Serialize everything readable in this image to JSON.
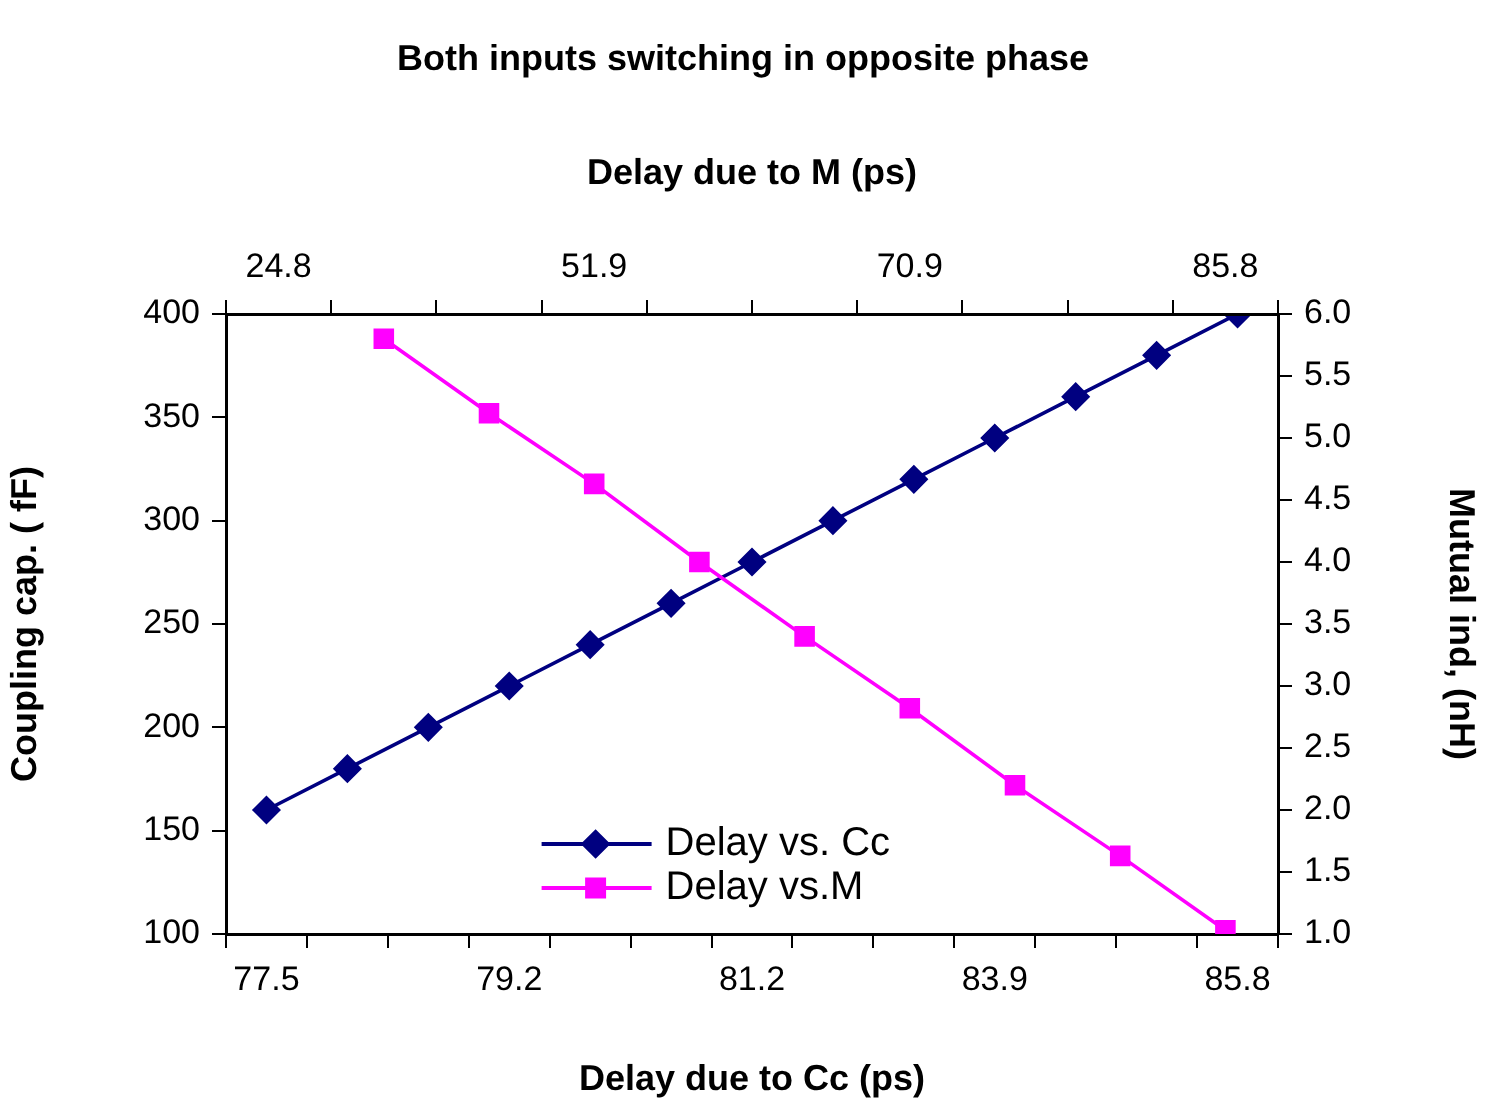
{
  "chart_data": [
    {
      "type": "line",
      "title": "Both inputs switching in opposite phase",
      "xlabel": "Delay due to Cc (ps)",
      "ylabel": "Coupling cap. ( fF)",
      "categories": [
        "77.5",
        null,
        null,
        "79.2",
        null,
        null,
        "81.2",
        null,
        null,
        "83.9",
        null,
        null,
        "85.8"
      ],
      "series": [
        {
          "name": "Delay vs. Cc",
          "color": "#000080",
          "values": [
            160,
            180,
            200,
            220,
            240,
            260,
            280,
            300,
            320,
            340,
            360,
            380,
            400
          ]
        }
      ],
      "ylim": [
        100,
        400
      ],
      "yticks": [
        100,
        150,
        200,
        250,
        300,
        350,
        400
      ],
      "marker": "diamond",
      "grid": false,
      "legend": "bottom"
    },
    {
      "type": "line",
      "x2label": "Delay due to M (ps)",
      "y2label": "Mutual ind, (nH)",
      "categories": [
        "24.8",
        null,
        null,
        "51.9",
        null,
        null,
        "70.9",
        null,
        null,
        "85.8"
      ],
      "series": [
        {
          "name": "Delay vs.M",
          "color": "#ff00ff",
          "axis": "y2",
          "values": [
            null,
            5.8,
            5.2,
            4.63,
            4.0,
            3.4,
            2.82,
            2.2,
            1.63,
            1.03
          ]
        }
      ],
      "y2lim": [
        1.0,
        6.0
      ],
      "y2ticks": [
        {
          "value": 1,
          "label": "1.0"
        },
        1.5,
        {
          "value": 2,
          "label": "2.0"
        },
        2.5,
        {
          "value": 3,
          "label": "3.0"
        },
        3.5,
        {
          "value": 4,
          "label": "4.0"
        },
        4.5,
        {
          "value": 5,
          "label": "5.0"
        },
        5.5,
        {
          "value": 6,
          "label": "6.0"
        }
      ],
      "marker": "square",
      "grid": false,
      "legend": "bottom"
    }
  ]
}
